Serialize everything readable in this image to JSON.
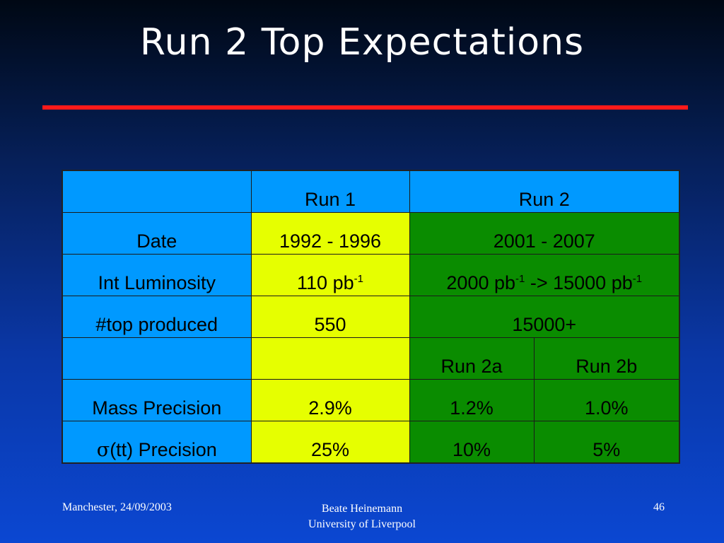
{
  "slide": {
    "title": "Run 2 Top Expectations"
  },
  "table": {
    "header": {
      "run1": "Run 1",
      "run2": "Run 2"
    },
    "date": {
      "label": "Date",
      "run1": "1992 - 1996",
      "run2": "2001 - 2007"
    },
    "lumi": {
      "label": "Int Luminosity",
      "run1_num": "110 pb",
      "run1_exp": "-1",
      "run2_a": "2000 pb",
      "run2_a_exp": "-1",
      "run2_mid": " -> 15000 pb",
      "run2_b_exp": "-1"
    },
    "top": {
      "label": "#top produced",
      "run1": "550",
      "run2": "15000+"
    },
    "subheader": {
      "run2a": "Run 2a",
      "run2b": "Run 2b"
    },
    "mass": {
      "label": "Mass Precision",
      "run1": "2.9%",
      "run2a": "1.2%",
      "run2b": "1.0%"
    },
    "xsec": {
      "label_sym": "σ",
      "label_rest": "(tt) Precision",
      "run1": "25%",
      "run2a": "10%",
      "run2b": "5%"
    }
  },
  "footer": {
    "left": "Manchester, 24/09/2003",
    "center_line1": "Beate Heinemann",
    "center_line2": "University of Liverpool",
    "page": "46"
  },
  "colors": {
    "header_cells": "#0099ff",
    "run1_cells": "#e6ff00",
    "run2_cells": "#0a8c00",
    "title_rule": "#ff1a1a"
  }
}
